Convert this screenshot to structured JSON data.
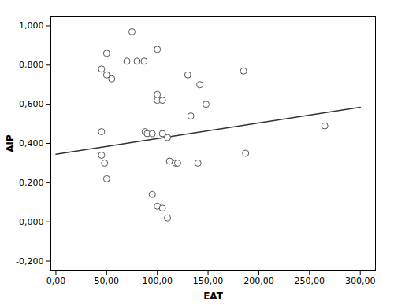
{
  "chart_data": {
    "type": "scatter",
    "x_label": "EAT",
    "y_label": "AIP",
    "series": [
      {
        "type": "scatter",
        "marker": "open_circle",
        "color": "#555555",
        "x": [
          75,
          50,
          45,
          50,
          55,
          45,
          45,
          48,
          50,
          70,
          80,
          87,
          88,
          90,
          95,
          100,
          100,
          100,
          105,
          105,
          110,
          112,
          118,
          120,
          95,
          100,
          105,
          110,
          130,
          133,
          140,
          142,
          148,
          185,
          187,
          265
        ],
        "values": [
          0.97,
          0.86,
          0.78,
          0.75,
          0.73,
          0.46,
          0.34,
          0.3,
          0.22,
          0.82,
          0.82,
          0.82,
          0.46,
          0.45,
          0.45,
          0.88,
          0.65,
          0.62,
          0.62,
          0.45,
          0.43,
          0.31,
          0.3,
          0.3,
          0.14,
          0.08,
          0.07,
          0.02,
          0.75,
          0.54,
          0.3,
          0.7,
          0.6,
          0.77,
          0.35,
          0.49
        ]
      },
      {
        "type": "line",
        "line_style": "solid",
        "color": "#333333",
        "x": [
          0,
          300
        ],
        "values": [
          0.345,
          0.585
        ]
      }
    ],
    "xlim": [
      -5,
      315
    ],
    "ylim": [
      -0.25,
      1.05
    ],
    "xticks": [
      {
        "value": 0,
        "label": "0,00"
      },
      {
        "value": 50,
        "label": "50,00"
      },
      {
        "value": 100,
        "label": "100,00"
      },
      {
        "value": 150,
        "label": "150,00"
      },
      {
        "value": 200,
        "label": "200,00"
      },
      {
        "value": 250,
        "label": "250,00"
      },
      {
        "value": 300,
        "label": "300,00"
      }
    ],
    "yticks": [
      {
        "value": -0.2,
        "label": "-0,200"
      },
      {
        "value": 0.0,
        "label": "0,000"
      },
      {
        "value": 0.2,
        "label": "0,200"
      },
      {
        "value": 0.4,
        "label": "0,400"
      },
      {
        "value": 0.6,
        "label": "0,600"
      },
      {
        "value": 0.8,
        "label": "0,800"
      },
      {
        "value": 1.0,
        "label": "1,000"
      }
    ],
    "grid": false
  }
}
